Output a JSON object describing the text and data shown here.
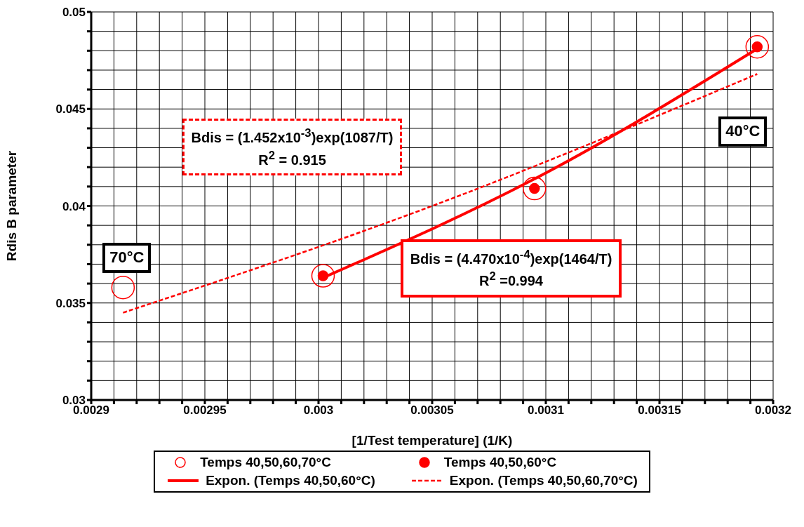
{
  "chart_data": {
    "type": "scatter",
    "xlabel": "[1/Test temperature] (1/K)",
    "ylabel": "Rdis B parameter",
    "xlim": [
      0.0029,
      0.0032
    ],
    "xticks": [
      0.0029,
      {
        "value": 0.00291,
        "label": null
      },
      {
        "value": 0.00292,
        "label": null
      },
      {
        "value": 0.00293,
        "label": null
      },
      {
        "value": 0.00294,
        "label": null
      },
      0.00295,
      {
        "value": 0.00296,
        "label": null
      },
      {
        "value": 0.00297,
        "label": null
      },
      {
        "value": 0.00298,
        "label": null
      },
      {
        "value": 0.00299,
        "label": null
      },
      0.003,
      {
        "value": 0.00301,
        "label": null
      },
      {
        "value": 0.00302,
        "label": null
      },
      {
        "value": 0.00303,
        "label": null
      },
      {
        "value": 0.00304,
        "label": null
      },
      0.00305,
      {
        "value": 0.00306,
        "label": null
      },
      {
        "value": 0.00307,
        "label": null
      },
      {
        "value": 0.00308,
        "label": null
      },
      {
        "value": 0.00309,
        "label": null
      },
      0.0031,
      {
        "value": 0.00311,
        "label": null
      },
      {
        "value": 0.00312,
        "label": null
      },
      {
        "value": 0.00313,
        "label": null
      },
      {
        "value": 0.00314,
        "label": null
      },
      0.00315,
      {
        "value": 0.00316,
        "label": null
      },
      {
        "value": 0.00317,
        "label": null
      },
      {
        "value": 0.00318,
        "label": null
      },
      {
        "value": 0.00319,
        "label": null
      },
      0.0032
    ],
    "ylim": [
      0.03,
      0.05
    ],
    "yticks": [
      0.03,
      {
        "value": 0.031,
        "label": null
      },
      {
        "value": 0.032,
        "label": null
      },
      {
        "value": 0.033,
        "label": null
      },
      {
        "value": 0.034,
        "label": null
      },
      0.035,
      {
        "value": 0.036,
        "label": null
      },
      {
        "value": 0.037,
        "label": null
      },
      {
        "value": 0.038,
        "label": null
      },
      {
        "value": 0.039,
        "label": null
      },
      0.04,
      {
        "value": 0.041,
        "label": null
      },
      {
        "value": 0.042,
        "label": null
      },
      {
        "value": 0.043,
        "label": null
      },
      {
        "value": 0.044,
        "label": null
      },
      0.045,
      {
        "value": 0.046,
        "label": null
      },
      {
        "value": 0.047,
        "label": null
      },
      {
        "value": 0.048,
        "label": null
      },
      {
        "value": 0.049,
        "label": null
      },
      0.05
    ],
    "grid": true,
    "legend": "bottom",
    "series": [
      {
        "name": "Temps 40,50,60,70°C",
        "marker": "circle",
        "color": "#ff0000",
        "x": [
          0.002914,
          0.003002,
          0.003095,
          0.003193
        ],
        "values": [
          0.0358,
          0.0364,
          0.0409,
          0.0482
        ]
      },
      {
        "name": "Temps 40,50,60°C",
        "marker": "circle",
        "color": "#ff0000",
        "x": [
          0.003002,
          0.003095,
          0.003193
        ],
        "values": [
          0.0364,
          0.0409,
          0.0482
        ]
      },
      {
        "name": "Expon. (Temps 40,50,60°C)",
        "type": "line",
        "marker": "none",
        "line_style": "solid",
        "color": "#ff0000",
        "x": [
          0.003002,
          0.0031,
          0.003193
        ],
        "values": [
          0.0363,
          0.0417,
          0.0481
        ]
      },
      {
        "name": "Expon. (Temps 40,50,60,70°C)",
        "type": "line",
        "marker": "none",
        "line_style": "dashed",
        "color": "#ff0000",
        "x": [
          0.002914,
          0.00305,
          0.003193
        ],
        "values": [
          0.0345,
          0.04,
          0.0468
        ]
      }
    ],
    "annotations": [
      "70°C",
      "40°C",
      "Bdis = (1.452x10$^{-3}$)exp(1087/T)\nR$^{2}$ = 0.915",
      "Bdis = (4.470x10$^{-4}$)exp(1464/T)\nR$^{2}$ =0.994"
    ]
  }
}
